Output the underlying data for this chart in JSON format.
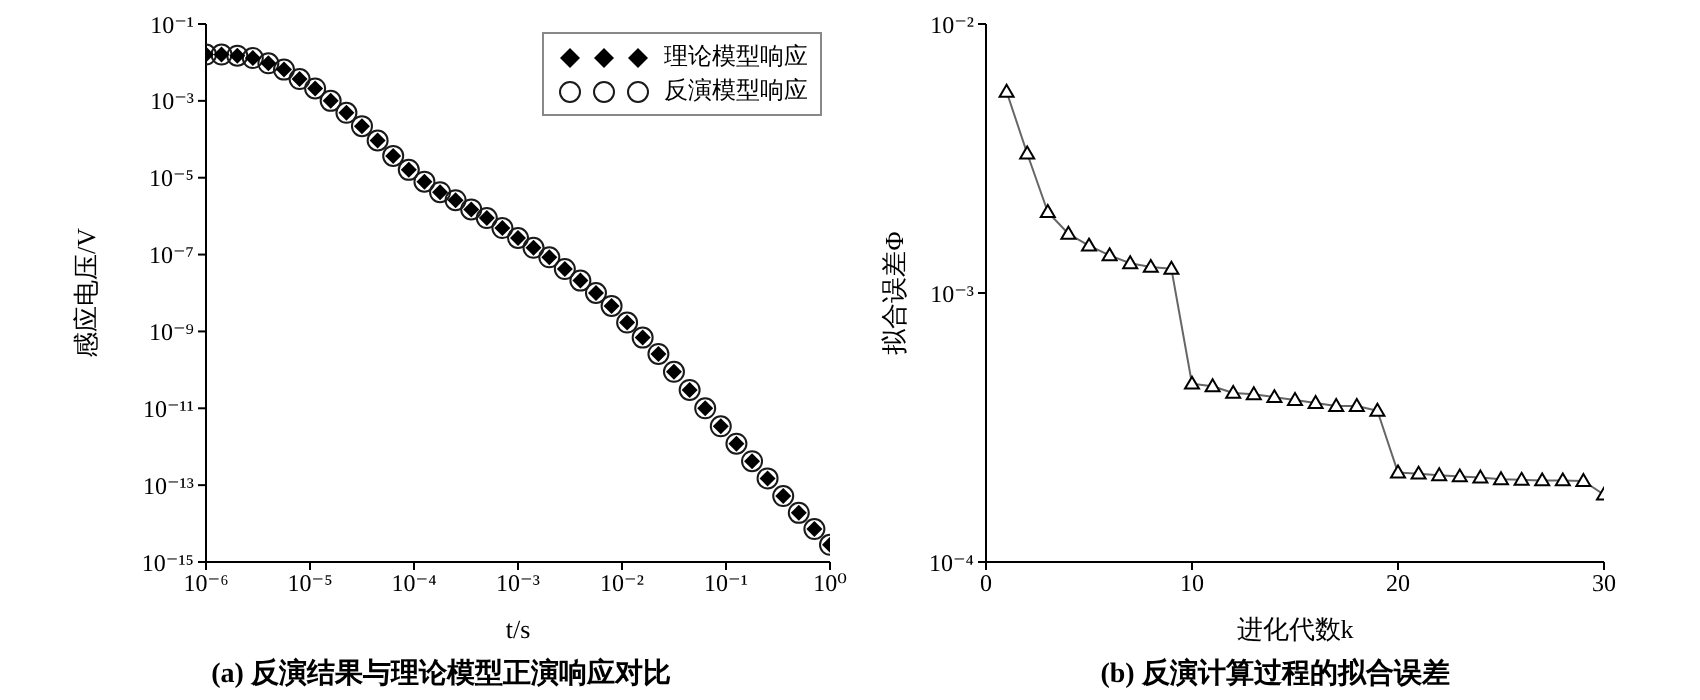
{
  "chart_data": [
    {
      "type": "scatter",
      "title": "(a) 反演结果与理论模型正演响应对比",
      "xlabel": "t/s",
      "ylabel": "感应电压/V",
      "log": "xy",
      "grid": false,
      "legend": "top right",
      "xlim": [
        1e-06,
        1
      ],
      "ylim": [
        1e-15,
        0.1
      ],
      "xticks": [
        {
          "value": 1e-06,
          "label": "10⁻⁶"
        },
        {
          "value": 1e-05,
          "label": "10⁻⁵"
        },
        {
          "value": 0.0001,
          "label": "10⁻⁴"
        },
        {
          "value": 0.001,
          "label": "10⁻³"
        },
        {
          "value": 0.01,
          "label": "10⁻²"
        },
        {
          "value": 0.1,
          "label": "10⁻¹"
        },
        {
          "value": 1,
          "label": "10⁰"
        }
      ],
      "yticks": [
        {
          "value": 0.1,
          "label": "10⁻¹"
        },
        {
          "value": 0.001,
          "label": "10⁻³"
        },
        {
          "value": 1e-05,
          "label": "10⁻⁵"
        },
        {
          "value": 1e-07,
          "label": "10⁻⁷"
        },
        {
          "value": 1e-09,
          "label": "10⁻⁹"
        },
        {
          "value": 1e-11,
          "label": "10⁻¹¹"
        },
        {
          "value": 1e-13,
          "label": "10⁻¹³"
        },
        {
          "value": 1e-15,
          "label": "10⁻¹⁵"
        }
      ],
      "x": [
        1e-06,
        1.41e-06,
        2e-06,
        2.82e-06,
        3.98e-06,
        5.62e-06,
        7.94e-06,
        1.12e-05,
        1.58e-05,
        2.24e-05,
        3.16e-05,
        4.47e-05,
        6.31e-05,
        8.91e-05,
        0.000126,
        0.000178,
        0.000251,
        0.000355,
        0.000501,
        0.000708,
        0.001,
        0.00141,
        0.002,
        0.00282,
        0.00398,
        0.00562,
        0.00794,
        0.0112,
        0.0158,
        0.0224,
        0.0316,
        0.0447,
        0.0631,
        0.0891,
        0.126,
        0.178,
        0.251,
        0.355,
        0.501,
        0.708,
        1
      ],
      "series": [
        {
          "name": "理论模型响应",
          "color": "#000000",
          "marker": "diamond",
          "values": [
            0.016,
            0.016,
            0.015,
            0.013,
            0.0095,
            0.0065,
            0.0037,
            0.0021,
            0.001,
            0.00049,
            0.00022,
            9.3e-05,
            3.7e-05,
            1.6e-05,
            7.9e-06,
            4.2e-06,
            2.6e-06,
            1.5e-06,
            8.9e-07,
            4.9e-07,
            2.7e-07,
            1.5e-07,
            8.5e-08,
            4.2e-08,
            2.1e-08,
            1e-08,
            4.6e-09,
            1.7e-09,
            6.9e-10,
            2.6e-10,
            8.9e-11,
            3e-11,
            1e-11,
            3.4e-12,
            1.2e-12,
            4.2e-13,
            1.5e-13,
            5.2e-14,
            1.9e-14,
            7.2e-15,
            2.8e-15
          ]
        },
        {
          "name": "反演模型响应",
          "color": "#1a1a1a",
          "marker": "circle",
          "values": [
            0.016,
            0.016,
            0.015,
            0.013,
            0.0095,
            0.0065,
            0.0037,
            0.0021,
            0.001,
            0.00049,
            0.00022,
            9.3e-05,
            3.7e-05,
            1.6e-05,
            7.9e-06,
            4.2e-06,
            2.6e-06,
            1.5e-06,
            8.9e-07,
            4.9e-07,
            2.7e-07,
            1.5e-07,
            8.5e-08,
            4.2e-08,
            2.1e-08,
            1e-08,
            4.6e-09,
            1.7e-09,
            6.9e-10,
            2.6e-10,
            8.9e-11,
            3e-11,
            1e-11,
            3.4e-12,
            1.2e-12,
            4.2e-13,
            1.5e-13,
            5.2e-14,
            1.9e-14,
            7.2e-15,
            2.8e-15
          ]
        }
      ]
    },
    {
      "type": "line",
      "title": "(b) 反演计算过程的拟合误差",
      "xlabel": "进化代数k",
      "ylabel": "拟合误差Φ",
      "log": "y",
      "grid": false,
      "marker": "triangle",
      "line_style": "solid",
      "xlim": [
        0,
        30
      ],
      "xticks": [
        0,
        10,
        20,
        30
      ],
      "ylim": [
        0.0001,
        0.01
      ],
      "yticks": [
        {
          "value": 0.0001,
          "label": "10⁻⁴"
        },
        {
          "value": 0.001,
          "label": "10⁻³"
        },
        {
          "value": 0.01,
          "label": "10⁻²"
        }
      ],
      "x": [
        1,
        2,
        3,
        4,
        5,
        6,
        7,
        8,
        9,
        10,
        11,
        12,
        13,
        14,
        15,
        16,
        17,
        18,
        19,
        20,
        21,
        22,
        23,
        24,
        25,
        26,
        27,
        28,
        29,
        30
      ],
      "series": [
        {
          "color": "#666666",
          "values": [
            0.0056,
            0.0033,
            0.002,
            0.00166,
            0.0015,
            0.00138,
            0.00129,
            0.00125,
            0.00123,
            0.00046,
            0.00045,
            0.000425,
            0.00042,
            0.00041,
            0.0004,
            0.00039,
            0.00038,
            0.00038,
            0.000365,
            0.000215,
            0.000213,
            0.00021,
            0.000208,
            0.000206,
            0.000203,
            0.000202,
            0.000201,
            0.000201,
            0.0002,
            0.000178
          ]
        }
      ]
    }
  ]
}
